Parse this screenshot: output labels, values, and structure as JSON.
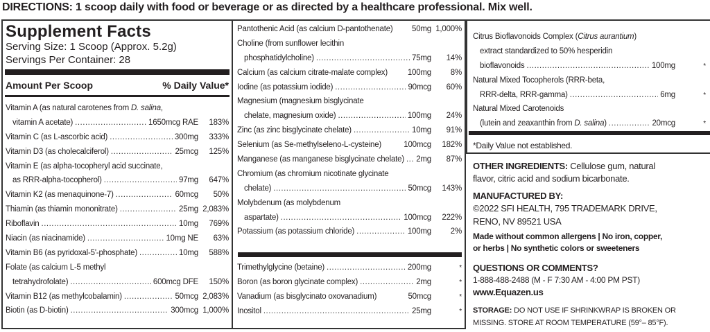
{
  "directions": "DIRECTIONS: 1 scoop daily with food or beverage or as directed by a healthcare professional. Mix well.",
  "facts": {
    "title": "Supplement Facts",
    "serving_size": "Serving Size: 1 Scoop (Approx. 5.2g)",
    "servings_per_container": "Servings Per Container: 28",
    "amount_header": "Amount Per Scoop",
    "dv_header": "% Daily Value*"
  },
  "col1": [
    {
      "lines": [
        "Vitamin A (as natural carotenes from D. salina,",
        "vitamin A acetate)"
      ],
      "italic": "D. salina",
      "amount": "1650mcg RAE",
      "dv": "183%"
    },
    {
      "lines": [
        "Vitamin C (as L-ascorbic acid)"
      ],
      "amount": "300mg",
      "dv": "333%"
    },
    {
      "lines": [
        "Vitamin D3 (as cholecalciferol)"
      ],
      "amount": "25mcg",
      "dv": "125%"
    },
    {
      "lines": [
        "Vitamin E (as alpha-tocopheryl acid succinate,",
        "as RRR-alpha-tocopherol)"
      ],
      "amount": "97mg",
      "dv": "647%"
    },
    {
      "lines": [
        "Vitamin K2 (as menaquinone-7)"
      ],
      "amount": "60mcg",
      "dv": "50%"
    },
    {
      "lines": [
        "Thiamin (as thiamin mononitrate)"
      ],
      "amount": "25mg",
      "dv": "2,083%"
    },
    {
      "lines": [
        "Riboflavin"
      ],
      "amount": "10mg",
      "dv": "769%"
    },
    {
      "lines": [
        "Niacin (as niacinamide)"
      ],
      "amount": "10mg NE",
      "dv": "63%"
    },
    {
      "lines": [
        "Vitamin B6 (as pyridoxal-5'-phosphate)"
      ],
      "amount": "10mg",
      "dv": "588%"
    },
    {
      "lines": [
        "Folate (as calcium L-5 methyl",
        "tetrahydrofolate)"
      ],
      "amount": "600mcg DFE",
      "dv": "150%"
    },
    {
      "lines": [
        "Vitamin B12 (as methylcobalamin)"
      ],
      "amount": "50mcg",
      "dv": "2,083%"
    },
    {
      "lines": [
        "Biotin (as D-biotin)"
      ],
      "amount": "300mcg",
      "dv": "1,000%"
    }
  ],
  "col2": [
    {
      "lines": [
        "Pantothenic Acid (as calcium D-pantothenate)"
      ],
      "amount": "50mg",
      "dv": "1,000%",
      "noleader": true
    },
    {
      "lines": [
        "Choline (from sunflower lecithin",
        "phosphatidylcholine)"
      ],
      "amount": "75mg",
      "dv": "14%"
    },
    {
      "lines": [
        "Calcium (as calcium citrate-malate complex)"
      ],
      "amount": "100mg",
      "dv": "8%",
      "noleader": true
    },
    {
      "lines": [
        "Iodine (as potassium iodide)"
      ],
      "amount": "90mcg",
      "dv": "60%"
    },
    {
      "lines": [
        "Magnesium (magnesium bisglycinate",
        "chelate, magnesium oxide)"
      ],
      "amount": "100mg",
      "dv": "24%"
    },
    {
      "lines": [
        "Zinc (as zinc bisglycinate chelate)"
      ],
      "amount": "10mg",
      "dv": "91%"
    },
    {
      "lines": [
        "Selenium (as Se-methylseleno-L-cysteine)"
      ],
      "amount": "100mcg",
      "dv": "182%",
      "noleader": true
    },
    {
      "lines": [
        "Manganese (as manganese bisglycinate chelate)"
      ],
      "amount": "2mg",
      "dv": "87%"
    },
    {
      "lines": [
        "Chromium (as chromium nicotinate glycinate",
        "chelate)"
      ],
      "amount": "50mcg",
      "dv": "143%"
    },
    {
      "lines": [
        "Molybdenum (as molybdenum",
        "aspartate)"
      ],
      "amount": "100mcg",
      "dv": "222%"
    },
    {
      "lines": [
        "Potassium (as potassium chloride)"
      ],
      "amount": "100mg",
      "dv": "2%"
    }
  ],
  "col2b": [
    {
      "lines": [
        "Trimethylglycine (betaine)"
      ],
      "amount": "200mg",
      "dv": "*"
    },
    {
      "lines": [
        "Boron (as boron glycinate complex)"
      ],
      "amount": "2mg",
      "dv": "*"
    },
    {
      "lines": [
        "Vanadium (as bisglycinato oxovanadium)"
      ],
      "amount": "50mcg",
      "dv": "*",
      "noleader": true
    },
    {
      "lines": [
        "Inositol"
      ],
      "amount": "25mg",
      "dv": "*"
    }
  ],
  "col3": [
    {
      "lines": [
        "Citrus Bioflavonoids Complex (Citrus aurantium)",
        "extract standardized to 50% hesperidin",
        "bioflavonoids"
      ],
      "italic": "Citrus aurantium",
      "amount": "100mg",
      "dv": "*"
    },
    {
      "lines": [
        "Natural Mixed Tocopherols (RRR-beta,",
        "RRR-delta, RRR-gamma)"
      ],
      "amount": "6mg",
      "dv": "*"
    },
    {
      "lines": [
        "Natural Mixed Carotenoids",
        "(lutein and zeaxanthin from D. salina)"
      ],
      "italic": "D. salina",
      "amount": "20mcg",
      "dv": "*"
    }
  ],
  "footnote": "*Daily Value not established.",
  "other_ingredients": {
    "label": "OTHER INGREDIENTS:",
    "line1": " Cellulose gum, natural",
    "line2": "flavor, citric acid and sodium bicarbonate."
  },
  "manufacturer": {
    "label": "MANUFACTURED BY:",
    "line1": "©2022 SFI HEALTH, 795 TRADEMARK DRIVE,",
    "line2": "RENO, NV 89521 USA"
  },
  "claims": {
    "line1": "Made without common allergens | No iron, copper,",
    "line2": "or herbs | No synthetic colors or sweeteners"
  },
  "contact": {
    "label": "QUESTIONS OR COMMENTS?",
    "phone": "1-888-488-2488 (M - F 7:30 AM - 4:00 PM PST)",
    "website": "www.Equazen.us"
  },
  "storage": {
    "label": "STORAGE:",
    "line1": " DO NOT USE IF SHRINKWRAP IS BROKEN OR",
    "line2": "MISSING. STORE AT ROOM TEMPERATURE (59°– 85°F)."
  }
}
